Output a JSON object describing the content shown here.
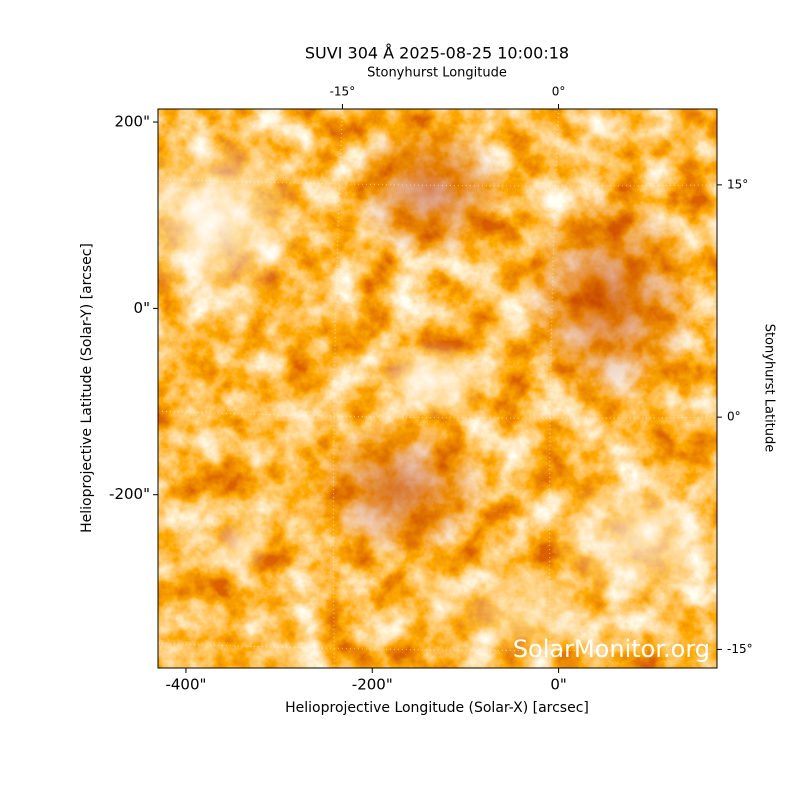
{
  "chart_data": {
    "type": "image",
    "title": "SUVI 304 Å 2025-08-25 10:00:18",
    "xlabel": "Helioprojective Longitude (Solar-X) [arcsec]",
    "ylabel": "Helioprojective Latitude (Solar-Y) [arcsec]",
    "x2label": "Stonyhurst Longitude",
    "y2label": "Stonyhurst Latitude",
    "annotation": "SolarMonitor.org",
    "xlim": [
      -430,
      170
    ],
    "ylim": [
      -386,
      214
    ],
    "xticks": [
      {
        "value": -400,
        "label": "-400\""
      },
      {
        "value": -200,
        "label": "-200\""
      },
      {
        "value": 0,
        "label": "0\""
      }
    ],
    "yticks": [
      {
        "value": -200,
        "label": "-200\""
      },
      {
        "value": 0,
        "label": "0\""
      },
      {
        "value": 200,
        "label": "200\""
      }
    ],
    "x2lim": [
      -27.8,
      11
    ],
    "y2lim": [
      -16.2,
      19.9
    ],
    "x2ticks": [
      {
        "value": -15,
        "label": "-15°"
      },
      {
        "value": 0,
        "label": "0°"
      }
    ],
    "y2ticks": [
      {
        "value": -15,
        "label": "-15°"
      },
      {
        "value": 0,
        "label": "0°"
      },
      {
        "value": 15,
        "label": "15°"
      }
    ],
    "grid": true
  }
}
